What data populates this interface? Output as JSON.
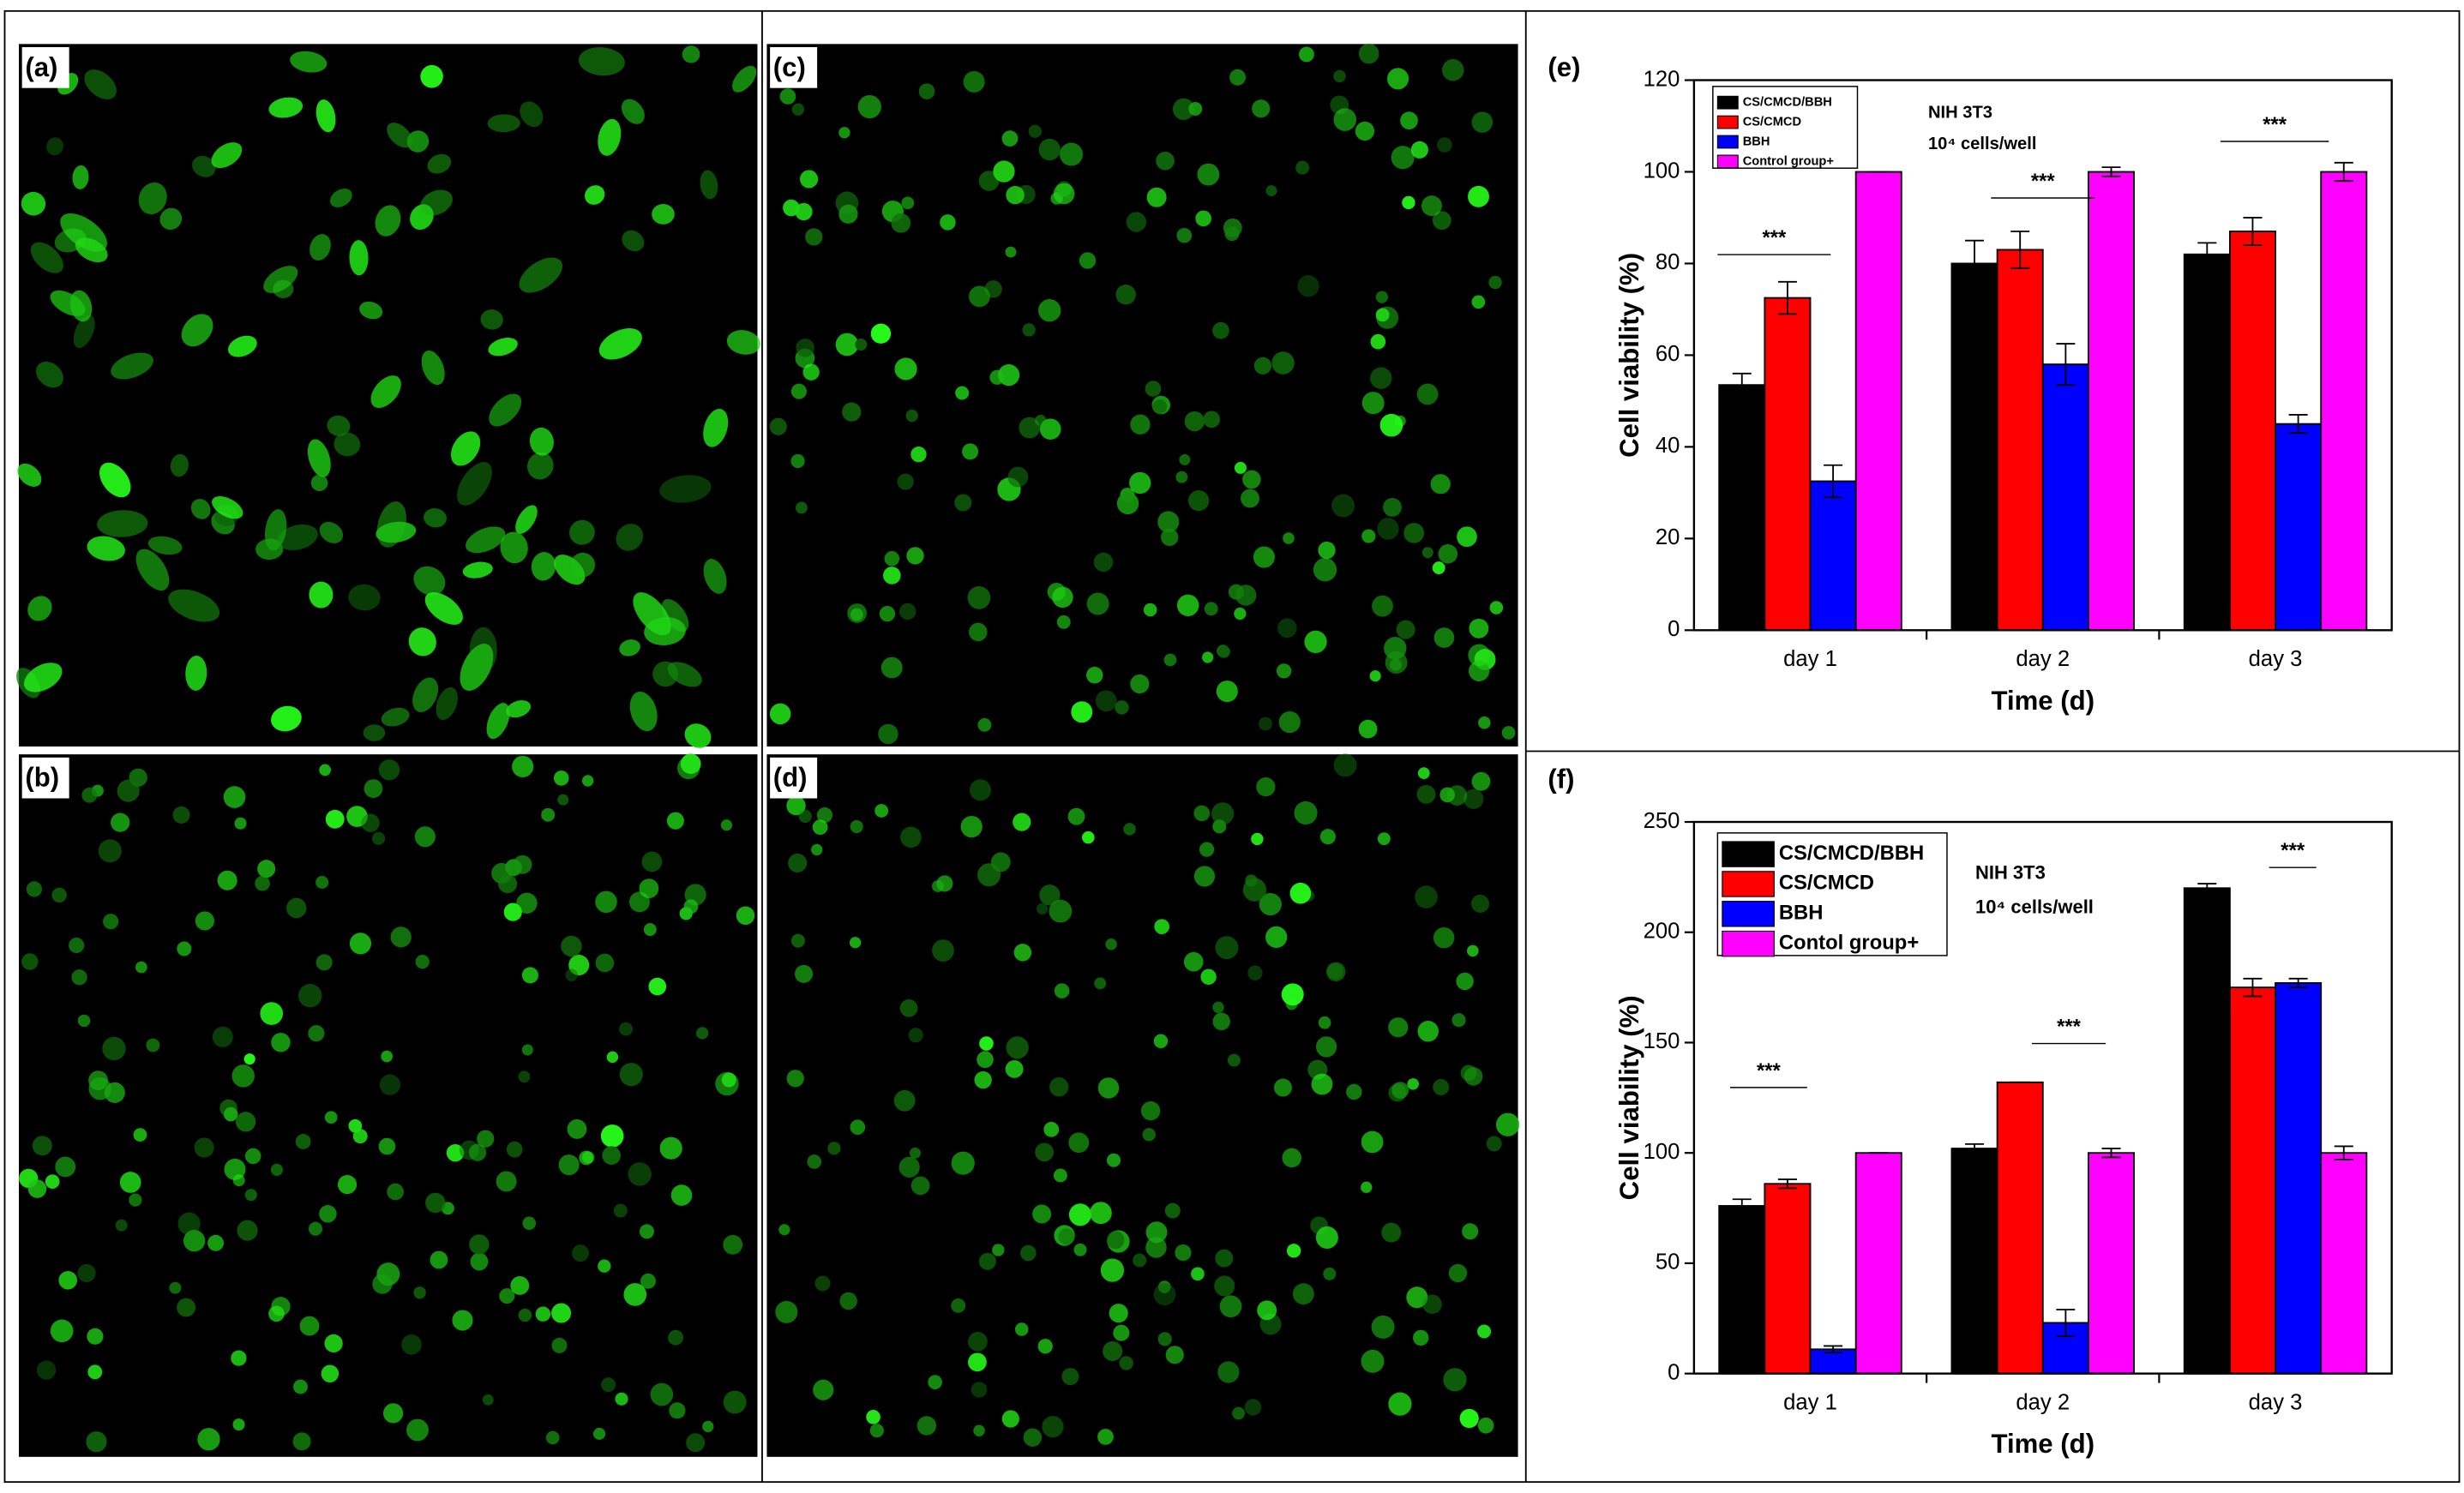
{
  "panels": [
    "(a)",
    "(c)",
    "(b)",
    "(d)"
  ],
  "chart_data": [
    {
      "type": "bar",
      "panel_label": "(e)",
      "x_label": "Time (d)",
      "y_label": "Cell viability (%)",
      "annotations": [
        "NIH 3T3",
        "10⁴ cells/well"
      ],
      "categories": [
        "day 1",
        "day 2",
        "day 3"
      ],
      "significance_labels": [
        "***",
        "***",
        "***"
      ],
      "ylim": [
        0,
        120
      ],
      "yticks": [
        0,
        20,
        40,
        60,
        80,
        100,
        120
      ],
      "legend": "top-left",
      "series": [
        {
          "name": "CS/CMCD/BBH",
          "color": "#000000",
          "values": [
            53.5,
            80,
            82
          ],
          "errors": [
            2.5,
            5,
            2.5
          ]
        },
        {
          "name": "CS/CMCD",
          "color": "#ff0000",
          "values": [
            72.5,
            83,
            87
          ],
          "errors": [
            3.5,
            4,
            3
          ]
        },
        {
          "name": "BBH",
          "color": "#0000ff",
          "values": [
            32.5,
            58,
            45
          ],
          "errors": [
            3.5,
            4.5,
            2
          ]
        },
        {
          "name": "Control group+",
          "color": "#ff00ff",
          "values": [
            100,
            100,
            100
          ],
          "errors": [
            0,
            1,
            2
          ]
        }
      ]
    },
    {
      "type": "bar",
      "panel_label": "(f)",
      "x_label": "Time (d)",
      "y_label": "Cell viability (%)",
      "annotations": [
        "NIH 3T3",
        "10⁴ cells/well"
      ],
      "categories": [
        "day 1",
        "day 2",
        "day 3"
      ],
      "significance_labels": [
        "***",
        "***",
        "***"
      ],
      "ylim": [
        0,
        250
      ],
      "yticks": [
        0,
        50,
        100,
        150,
        200,
        250
      ],
      "legend": "top-left",
      "series": [
        {
          "name": "CS/CMCD/BBH",
          "color": "#000000",
          "values": [
            76,
            102,
            220
          ],
          "errors": [
            3,
            2,
            2
          ]
        },
        {
          "name": "CS/CMCD",
          "color": "#ff0000",
          "values": [
            86,
            132,
            175
          ],
          "errors": [
            2,
            0,
            4
          ]
        },
        {
          "name": "BBH",
          "color": "#0000ff",
          "values": [
            11,
            23,
            177
          ],
          "errors": [
            1.5,
            6,
            2
          ]
        },
        {
          "name": "Contol group+",
          "color": "#ff00ff",
          "values": [
            100,
            100,
            100
          ],
          "errors": [
            0,
            2,
            3
          ]
        }
      ]
    }
  ]
}
